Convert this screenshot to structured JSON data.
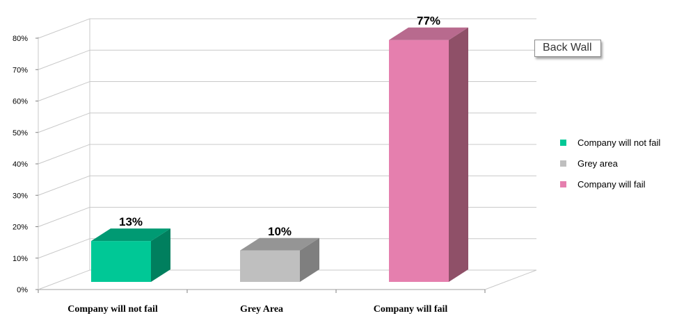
{
  "chart_data": {
    "type": "bar",
    "style": "3d",
    "categories": [
      "Company will not fail",
      "Grey Area",
      "Company will fail"
    ],
    "values": [
      13,
      10,
      77
    ],
    "value_labels": [
      "13%",
      "10%",
      "77%"
    ],
    "ylim": [
      0,
      80
    ],
    "y_ticks": [
      "0%",
      "10%",
      "20%",
      "30%",
      "40%",
      "50%",
      "60%",
      "70%",
      "80%"
    ],
    "grid": true,
    "legend_position": "right",
    "legend": [
      {
        "label": "Company will not fail",
        "color": "#00c896"
      },
      {
        "label": "Grey area",
        "color": "#bfbfbf"
      },
      {
        "label": "Company will fail",
        "color": "#e57fae"
      }
    ],
    "colors": {
      "front": [
        "#00c896",
        "#bfbfbf",
        "#e57fae"
      ],
      "side": [
        "#007f5e",
        "#7f7f7f",
        "#8f5068"
      ],
      "top": [
        "#009a73",
        "#959595",
        "#b86a8e"
      ]
    }
  },
  "tooltip": {
    "label": "Back Wall"
  }
}
